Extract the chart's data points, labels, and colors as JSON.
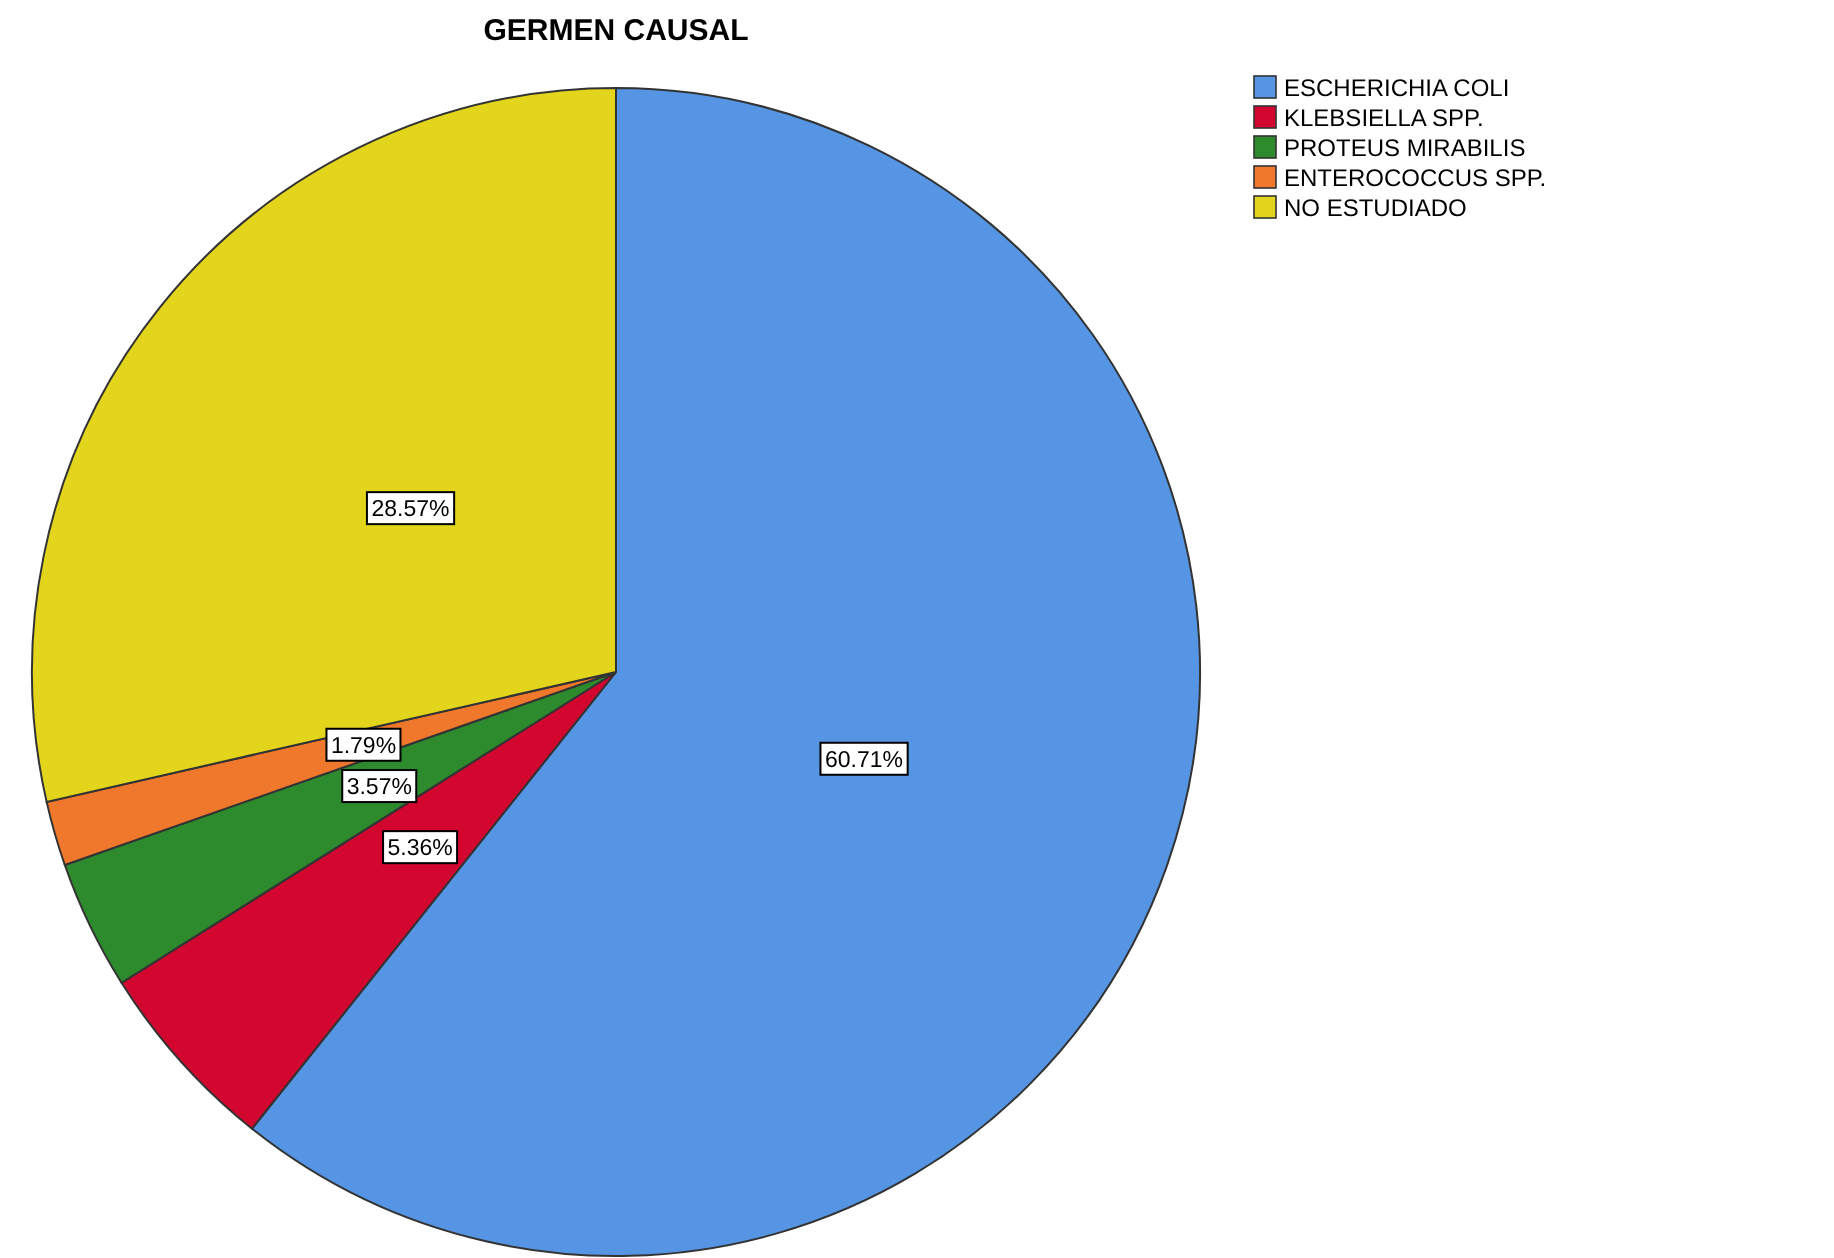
{
  "chart_data": {
    "type": "pie",
    "title": "GERMEN CAUSAL",
    "categories": [
      "ESCHERICHIA COLI",
      "KLEBSIELLA SPP.",
      "PROTEUS MIRABILIS",
      "ENTEROCOCCUS SPP.",
      "NO ESTUDIADO"
    ],
    "values": [
      60.71,
      5.36,
      3.57,
      1.79,
      28.57
    ],
    "colors": [
      "#5595e3",
      "#d3062f",
      "#2d8a2d",
      "#f0782d",
      "#e3d51c"
    ],
    "value_labels": [
      "60.71%",
      "5.36%",
      "3.57%",
      "1.79%",
      "28.57%"
    ],
    "legend": "top right"
  }
}
